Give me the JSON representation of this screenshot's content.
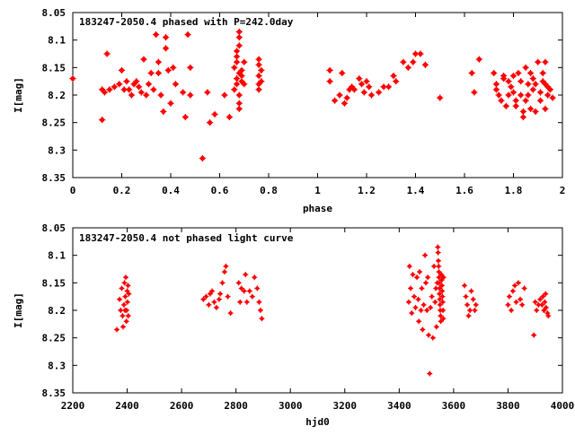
{
  "chart_data": [
    {
      "type": "scatter",
      "title": "183247-2050.4 phased with P=242.0day",
      "xlabel": "phase",
      "ylabel": "I[mag]",
      "xlim": [
        0,
        2
      ],
      "ylim": [
        8.35,
        8.05
      ],
      "y_inverted": true,
      "grid": false,
      "marker_color": "#ff0000",
      "xticks": [
        "0",
        "0.2",
        "0.4",
        "0.6",
        "0.8",
        "1",
        "1.2",
        "1.4",
        "1.6",
        "1.8",
        "2"
      ],
      "xtick_values": [
        0,
        0.2,
        0.4,
        0.6,
        0.8,
        1.0,
        1.2,
        1.4,
        1.6,
        1.8,
        2.0
      ],
      "yticks": [
        "8.05",
        "8.1",
        "8.15",
        "8.2",
        "8.25",
        "8.3",
        "8.35"
      ],
      "ytick_values": [
        8.05,
        8.1,
        8.15,
        8.2,
        8.25,
        8.3,
        8.35
      ],
      "points": [
        [
          0.0,
          8.17
        ],
        [
          0.12,
          8.245
        ],
        [
          0.12,
          8.19
        ],
        [
          0.13,
          8.195
        ],
        [
          0.14,
          8.125
        ],
        [
          0.15,
          8.19
        ],
        [
          0.17,
          8.185
        ],
        [
          0.19,
          8.18
        ],
        [
          0.2,
          8.155
        ],
        [
          0.21,
          8.19
        ],
        [
          0.22,
          8.175
        ],
        [
          0.23,
          8.19
        ],
        [
          0.24,
          8.2
        ],
        [
          0.25,
          8.18
        ],
        [
          0.26,
          8.175
        ],
        [
          0.27,
          8.185
        ],
        [
          0.28,
          8.195
        ],
        [
          0.29,
          8.135
        ],
        [
          0.3,
          8.2
        ],
        [
          0.31,
          8.18
        ],
        [
          0.32,
          8.16
        ],
        [
          0.33,
          8.19
        ],
        [
          0.34,
          8.09
        ],
        [
          0.35,
          8.14
        ],
        [
          0.35,
          8.16
        ],
        [
          0.36,
          8.2
        ],
        [
          0.37,
          8.23
        ],
        [
          0.38,
          8.095
        ],
        [
          0.38,
          8.115
        ],
        [
          0.39,
          8.155
        ],
        [
          0.4,
          8.215
        ],
        [
          0.41,
          8.15
        ],
        [
          0.42,
          8.18
        ],
        [
          0.45,
          8.195
        ],
        [
          0.46,
          8.24
        ],
        [
          0.47,
          8.09
        ],
        [
          0.48,
          8.2
        ],
        [
          0.48,
          8.15
        ],
        [
          0.53,
          8.315
        ],
        [
          0.55,
          8.195
        ],
        [
          0.56,
          8.25
        ],
        [
          0.58,
          8.235
        ],
        [
          0.62,
          8.2
        ],
        [
          0.64,
          8.24
        ],
        [
          0.66,
          8.15
        ],
        [
          0.66,
          8.19
        ],
        [
          0.67,
          8.18
        ],
        [
          0.67,
          8.12
        ],
        [
          0.67,
          8.13
        ],
        [
          0.67,
          8.14
        ],
        [
          0.67,
          8.17
        ],
        [
          0.68,
          8.085
        ],
        [
          0.68,
          8.095
        ],
        [
          0.68,
          8.11
        ],
        [
          0.68,
          8.16
        ],
        [
          0.68,
          8.2
        ],
        [
          0.68,
          8.215
        ],
        [
          0.68,
          8.225
        ],
        [
          0.69,
          8.155
        ],
        [
          0.69,
          8.165
        ],
        [
          0.69,
          8.175
        ],
        [
          0.7,
          8.14
        ],
        [
          0.7,
          8.18
        ],
        [
          0.76,
          8.135
        ],
        [
          0.76,
          8.145
        ],
        [
          0.76,
          8.165
        ],
        [
          0.76,
          8.18
        ],
        [
          0.76,
          8.19
        ],
        [
          0.77,
          8.155
        ],
        [
          0.77,
          8.175
        ],
        [
          1.05,
          8.155
        ],
        [
          1.05,
          8.175
        ],
        [
          1.07,
          8.21
        ],
        [
          1.09,
          8.2
        ],
        [
          1.1,
          8.16
        ],
        [
          1.11,
          8.215
        ],
        [
          1.12,
          8.205
        ],
        [
          1.13,
          8.19
        ],
        [
          1.14,
          8.185
        ],
        [
          1.15,
          8.19
        ],
        [
          1.17,
          8.17
        ],
        [
          1.18,
          8.18
        ],
        [
          1.19,
          8.195
        ],
        [
          1.2,
          8.175
        ],
        [
          1.21,
          8.185
        ],
        [
          1.22,
          8.2
        ],
        [
          1.25,
          8.195
        ],
        [
          1.27,
          8.185
        ],
        [
          1.29,
          8.185
        ],
        [
          1.31,
          8.165
        ],
        [
          1.32,
          8.175
        ],
        [
          1.35,
          8.14
        ],
        [
          1.37,
          8.15
        ],
        [
          1.39,
          8.14
        ],
        [
          1.4,
          8.125
        ],
        [
          1.42,
          8.125
        ],
        [
          1.44,
          8.145
        ],
        [
          1.5,
          8.205
        ],
        [
          1.63,
          8.16
        ],
        [
          1.64,
          8.195
        ],
        [
          1.66,
          8.135
        ],
        [
          1.72,
          8.16
        ],
        [
          1.73,
          8.18
        ],
        [
          1.73,
          8.19
        ],
        [
          1.74,
          8.2
        ],
        [
          1.75,
          8.21
        ],
        [
          1.76,
          8.165
        ],
        [
          1.76,
          8.17
        ],
        [
          1.77,
          8.22
        ],
        [
          1.78,
          8.175
        ],
        [
          1.78,
          8.2
        ],
        [
          1.79,
          8.185
        ],
        [
          1.8,
          8.165
        ],
        [
          1.8,
          8.195
        ],
        [
          1.81,
          8.21
        ],
        [
          1.81,
          8.22
        ],
        [
          1.82,
          8.16
        ],
        [
          1.83,
          8.175
        ],
        [
          1.83,
          8.2
        ],
        [
          1.84,
          8.23
        ],
        [
          1.84,
          8.24
        ],
        [
          1.85,
          8.15
        ],
        [
          1.85,
          8.21
        ],
        [
          1.86,
          8.18
        ],
        [
          1.86,
          8.2
        ],
        [
          1.87,
          8.16
        ],
        [
          1.87,
          8.225
        ],
        [
          1.88,
          8.19
        ],
        [
          1.88,
          8.17
        ],
        [
          1.89,
          8.18
        ],
        [
          1.89,
          8.23
        ],
        [
          1.9,
          8.14
        ],
        [
          1.91,
          8.195
        ],
        [
          1.91,
          8.21
        ],
        [
          1.92,
          8.16
        ],
        [
          1.92,
          8.175
        ],
        [
          1.93,
          8.18
        ],
        [
          1.93,
          8.225
        ],
        [
          1.93,
          8.14
        ],
        [
          1.94,
          8.185
        ],
        [
          1.94,
          8.2
        ],
        [
          1.95,
          8.19
        ],
        [
          1.96,
          8.205
        ]
      ]
    },
    {
      "type": "scatter",
      "title": "183247-2050.4 not phased light curve",
      "xlabel": "hjd0",
      "ylabel": "I[mag]",
      "xlim": [
        2200,
        4000
      ],
      "ylim": [
        8.35,
        8.05
      ],
      "y_inverted": true,
      "grid": false,
      "marker_color": "#ff0000",
      "xticks": [
        "2200",
        "2400",
        "2600",
        "2800",
        "3000",
        "3200",
        "3400",
        "3600",
        "3800",
        "4000"
      ],
      "xtick_values": [
        2200,
        2400,
        2600,
        2800,
        3000,
        3200,
        3400,
        3600,
        3800,
        4000
      ],
      "yticks": [
        "8.05",
        "8.1",
        "8.15",
        "8.2",
        "8.25",
        "8.3",
        "8.35"
      ],
      "ytick_values": [
        8.05,
        8.1,
        8.15,
        8.2,
        8.25,
        8.3,
        8.35
      ],
      "points": [
        [
          2362,
          8.235
        ],
        [
          2372,
          8.18
        ],
        [
          2376,
          8.2
        ],
        [
          2380,
          8.16
        ],
        [
          2383,
          8.21
        ],
        [
          2385,
          8.23
        ],
        [
          2388,
          8.19
        ],
        [
          2390,
          8.15
        ],
        [
          2392,
          8.2
        ],
        [
          2393,
          8.175
        ],
        [
          2395,
          8.14
        ],
        [
          2397,
          8.22
        ],
        [
          2398,
          8.2
        ],
        [
          2400,
          8.165
        ],
        [
          2401,
          8.185
        ],
        [
          2403,
          8.155
        ],
        [
          2404,
          8.21
        ],
        [
          2406,
          8.17
        ],
        [
          2680,
          8.18
        ],
        [
          2690,
          8.175
        ],
        [
          2700,
          8.19
        ],
        [
          2705,
          8.17
        ],
        [
          2712,
          8.165
        ],
        [
          2720,
          8.185
        ],
        [
          2728,
          8.195
        ],
        [
          2738,
          8.18
        ],
        [
          2742,
          8.17
        ],
        [
          2750,
          8.15
        ],
        [
          2758,
          8.13
        ],
        [
          2763,
          8.12
        ],
        [
          2770,
          8.175
        ],
        [
          2780,
          8.205
        ],
        [
          2810,
          8.15
        ],
        [
          2815,
          8.185
        ],
        [
          2820,
          8.16
        ],
        [
          2830,
          8.165
        ],
        [
          2835,
          8.135
        ],
        [
          2840,
          8.185
        ],
        [
          2850,
          8.165
        ],
        [
          2860,
          8.175
        ],
        [
          2868,
          8.14
        ],
        [
          2878,
          8.16
        ],
        [
          2885,
          8.185
        ],
        [
          2890,
          8.2
        ],
        [
          2895,
          8.215
        ],
        [
          3435,
          8.185
        ],
        [
          3438,
          8.12
        ],
        [
          3442,
          8.16
        ],
        [
          3446,
          8.205
        ],
        [
          3450,
          8.135
        ],
        [
          3455,
          8.175
        ],
        [
          3460,
          8.195
        ],
        [
          3465,
          8.14
        ],
        [
          3470,
          8.18
        ],
        [
          3472,
          8.22
        ],
        [
          3475,
          8.13
        ],
        [
          3480,
          8.2
        ],
        [
          3483,
          8.16
        ],
        [
          3486,
          8.235
        ],
        [
          3490,
          8.19
        ],
        [
          3495,
          8.1
        ],
        [
          3498,
          8.15
        ],
        [
          3502,
          8.2
        ],
        [
          3505,
          8.14
        ],
        [
          3508,
          8.245
        ],
        [
          3512,
          8.315
        ],
        [
          3515,
          8.195
        ],
        [
          3520,
          8.175
        ],
        [
          3524,
          8.25
        ],
        [
          3528,
          8.12
        ],
        [
          3532,
          8.185
        ],
        [
          3535,
          8.16
        ],
        [
          3537,
          8.23
        ],
        [
          3540,
          8.15
        ],
        [
          3542,
          8.085
        ],
        [
          3543,
          8.095
        ],
        [
          3544,
          8.11
        ],
        [
          3545,
          8.12
        ],
        [
          3546,
          8.13
        ],
        [
          3546,
          8.14
        ],
        [
          3547,
          8.15
        ],
        [
          3548,
          8.16
        ],
        [
          3548,
          8.17
        ],
        [
          3549,
          8.18
        ],
        [
          3550,
          8.19
        ],
        [
          3551,
          8.2
        ],
        [
          3552,
          8.21
        ],
        [
          3553,
          8.22
        ],
        [
          3555,
          8.135
        ],
        [
          3556,
          8.145
        ],
        [
          3557,
          8.155
        ],
        [
          3558,
          8.165
        ],
        [
          3559,
          8.175
        ],
        [
          3560,
          8.185
        ],
        [
          3561,
          8.2
        ],
        [
          3562,
          8.215
        ],
        [
          3563,
          8.14
        ],
        [
          3640,
          8.155
        ],
        [
          3645,
          8.175
        ],
        [
          3650,
          8.19
        ],
        [
          3655,
          8.21
        ],
        [
          3660,
          8.2
        ],
        [
          3665,
          8.165
        ],
        [
          3672,
          8.18
        ],
        [
          3678,
          8.2
        ],
        [
          3682,
          8.19
        ],
        [
          3800,
          8.19
        ],
        [
          3805,
          8.175
        ],
        [
          3812,
          8.2
        ],
        [
          3818,
          8.165
        ],
        [
          3825,
          8.155
        ],
        [
          3830,
          8.185
        ],
        [
          3838,
          8.15
        ],
        [
          3845,
          8.18
        ],
        [
          3852,
          8.19
        ],
        [
          3860,
          8.16
        ],
        [
          3895,
          8.245
        ],
        [
          3900,
          8.185
        ],
        [
          3905,
          8.2
        ],
        [
          3912,
          8.19
        ],
        [
          3918,
          8.18
        ],
        [
          3925,
          8.19
        ],
        [
          3928,
          8.175
        ],
        [
          3932,
          8.2
        ],
        [
          3935,
          8.185
        ],
        [
          3938,
          8.17
        ],
        [
          3940,
          8.195
        ],
        [
          3945,
          8.205
        ],
        [
          3948,
          8.21
        ]
      ]
    }
  ]
}
